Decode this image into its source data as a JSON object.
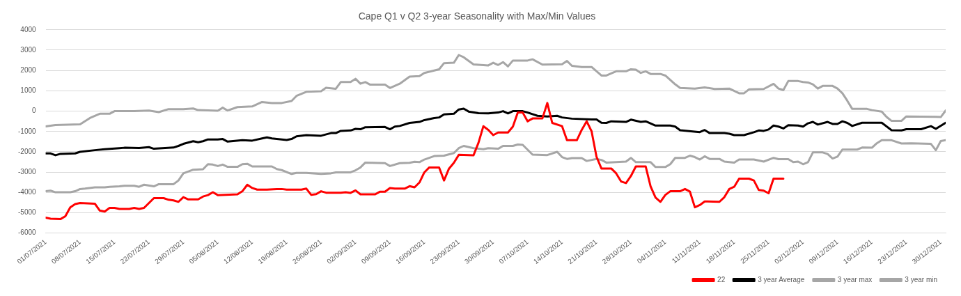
{
  "chart_data": {
    "type": "line",
    "title": "Cape Q1 v Q2 3-year Seasonality with Max/Min Values",
    "xlim": [
      "2021-07-01",
      "2021-12-31"
    ],
    "xticks": [
      {
        "value": "2021-07-01",
        "label": "01/07/2021"
      },
      {
        "value": "2021-07-08",
        "label": "08/07/2021"
      },
      {
        "value": "2021-07-15",
        "label": "15/07/2021"
      },
      {
        "value": "2021-07-22",
        "label": "22/07/2021"
      },
      {
        "value": "2021-07-29",
        "label": "29/07/2021"
      },
      {
        "value": "2021-08-05",
        "label": "05/08/2021"
      },
      {
        "value": "2021-08-12",
        "label": "12/08/2021"
      },
      {
        "value": "2021-08-19",
        "label": "19/08/2021"
      },
      {
        "value": "2021-08-26",
        "label": "26/08/2021"
      },
      {
        "value": "2021-09-02",
        "label": "02/09/2021"
      },
      {
        "value": "2021-09-09",
        "label": "09/09/2021"
      },
      {
        "value": "2021-09-16",
        "label": "16/09/2021"
      },
      {
        "value": "2021-09-23",
        "label": "23/09/2021"
      },
      {
        "value": "2021-09-30",
        "label": "30/09/2021"
      },
      {
        "value": "2021-10-07",
        "label": "07/10/2021"
      },
      {
        "value": "2021-10-14",
        "label": "14/10/2021"
      },
      {
        "value": "2021-10-21",
        "label": "21/10/2021"
      },
      {
        "value": "2021-10-28",
        "label": "28/10/2021"
      },
      {
        "value": "2021-11-04",
        "label": "04/11/2021"
      },
      {
        "value": "2021-11-11",
        "label": "11/11/2021"
      },
      {
        "value": "2021-11-18",
        "label": "18/11/2021"
      },
      {
        "value": "2021-11-25",
        "label": "25/11/2021"
      },
      {
        "value": "2021-12-02",
        "label": "02/12/2021"
      },
      {
        "value": "2021-12-09",
        "label": "09/12/2021"
      },
      {
        "value": "2021-12-16",
        "label": "16/12/2021"
      },
      {
        "value": "2021-12-23",
        "label": "23/12/2021"
      },
      {
        "value": "2021-12-30",
        "label": "30/12/2021"
      }
    ],
    "ylim": [
      -6000,
      4000
    ],
    "yticks": [
      -6000,
      -5000,
      -4000,
      -3000,
      -2000,
      -1000,
      0,
      1000,
      2000,
      3000,
      4000
    ],
    "grid": "y",
    "legend": "bottom",
    "marker": "none",
    "line_style": "solid",
    "series": [
      {
        "name": "22",
        "color": "#ff0000",
        "x": [
          "2021-07-01",
          "2021-07-02",
          "2021-07-04",
          "2021-07-05",
          "2021-07-06",
          "2021-07-07",
          "2021-07-08",
          "2021-07-11",
          "2021-07-12",
          "2021-07-13",
          "2021-07-14",
          "2021-07-15",
          "2021-07-16",
          "2021-07-18",
          "2021-07-19",
          "2021-07-20",
          "2021-07-21",
          "2021-07-23",
          "2021-07-25",
          "2021-07-26",
          "2021-07-27",
          "2021-07-28",
          "2021-07-29",
          "2021-07-30",
          "2021-08-01",
          "2021-08-02",
          "2021-08-03",
          "2021-08-04",
          "2021-08-05",
          "2021-08-09",
          "2021-08-10",
          "2021-08-11",
          "2021-08-12",
          "2021-08-13",
          "2021-08-15",
          "2021-08-17",
          "2021-08-18",
          "2021-08-19",
          "2021-08-22",
          "2021-08-23",
          "2021-08-24",
          "2021-08-25",
          "2021-08-26",
          "2021-08-27",
          "2021-08-30",
          "2021-08-31",
          "2021-09-01",
          "2021-09-02",
          "2021-09-03",
          "2021-09-06",
          "2021-09-07",
          "2021-09-08",
          "2021-09-09",
          "2021-09-10",
          "2021-09-12",
          "2021-09-13",
          "2021-09-14",
          "2021-09-15",
          "2021-09-16",
          "2021-09-17",
          "2021-09-19",
          "2021-09-20",
          "2021-09-21",
          "2021-09-22",
          "2021-09-23",
          "2021-09-26",
          "2021-09-27",
          "2021-09-28",
          "2021-09-29",
          "2021-09-30",
          "2021-10-01",
          "2021-10-03",
          "2021-10-04",
          "2021-10-05",
          "2021-10-06",
          "2021-10-07",
          "2021-10-08",
          "2021-10-10",
          "2021-10-11",
          "2021-10-12",
          "2021-10-14",
          "2021-10-15",
          "2021-10-17",
          "2021-10-18",
          "2021-10-19",
          "2021-10-20",
          "2021-10-21",
          "2021-10-22",
          "2021-10-24",
          "2021-10-25",
          "2021-10-26",
          "2021-10-27",
          "2021-10-28",
          "2021-10-29",
          "2021-10-31",
          "2021-11-01",
          "2021-11-02",
          "2021-11-03",
          "2021-11-04",
          "2021-11-05",
          "2021-11-07",
          "2021-11-08",
          "2021-11-09",
          "2021-11-10",
          "2021-11-11",
          "2021-11-12",
          "2021-11-15",
          "2021-11-16",
          "2021-11-17",
          "2021-11-18",
          "2021-11-19",
          "2021-11-21",
          "2021-11-22",
          "2021-11-23",
          "2021-11-24",
          "2021-11-25",
          "2021-11-26",
          "2021-11-28"
        ],
        "values": [
          -5240,
          -5290,
          -5310,
          -5170,
          -4730,
          -4570,
          -4520,
          -4550,
          -4890,
          -4940,
          -4760,
          -4760,
          -4810,
          -4810,
          -4760,
          -4810,
          -4760,
          -4280,
          -4280,
          -4360,
          -4390,
          -4460,
          -4230,
          -4340,
          -4340,
          -4200,
          -4130,
          -3990,
          -4130,
          -4090,
          -3940,
          -3620,
          -3780,
          -3860,
          -3860,
          -3830,
          -3830,
          -3860,
          -3860,
          -3810,
          -4120,
          -4080,
          -3940,
          -4010,
          -4010,
          -3990,
          -4020,
          -3900,
          -4090,
          -4090,
          -3960,
          -3960,
          -3780,
          -3810,
          -3810,
          -3690,
          -3750,
          -3510,
          -3010,
          -2770,
          -2770,
          -3410,
          -2830,
          -2540,
          -2150,
          -2170,
          -1560,
          -740,
          -920,
          -1180,
          -1050,
          -1050,
          -760,
          -70,
          -70,
          -500,
          -360,
          -360,
          400,
          -580,
          -740,
          -1430,
          -1430,
          -920,
          -500,
          -990,
          -2240,
          -2820,
          -2820,
          -3060,
          -3460,
          -3540,
          -3190,
          -2720,
          -2720,
          -3700,
          -4250,
          -4460,
          -4120,
          -3940,
          -3940,
          -3830,
          -3960,
          -4730,
          -4620,
          -4440,
          -4460,
          -4230,
          -3830,
          -3720,
          -3320,
          -3320,
          -3410,
          -3880,
          -3910,
          -4040,
          -3320,
          -3320
        ]
      },
      {
        "name": "3 year Average",
        "color": "#000000",
        "x": [
          "2021-07-01",
          "2021-07-02",
          "2021-07-03",
          "2021-07-04",
          "2021-07-07",
          "2021-07-08",
          "2021-07-11",
          "2021-07-13",
          "2021-07-16",
          "2021-07-17",
          "2021-07-20",
          "2021-07-22",
          "2021-07-23",
          "2021-07-27",
          "2021-07-28",
          "2021-07-29",
          "2021-07-31",
          "2021-08-01",
          "2021-08-02",
          "2021-08-03",
          "2021-08-05",
          "2021-08-06",
          "2021-08-07",
          "2021-08-10",
          "2021-08-12",
          "2021-08-14",
          "2021-08-15",
          "2021-08-16",
          "2021-08-19",
          "2021-08-20",
          "2021-08-21",
          "2021-08-23",
          "2021-08-26",
          "2021-08-28",
          "2021-08-29",
          "2021-08-30",
          "2021-09-01",
          "2021-09-02",
          "2021-09-03",
          "2021-09-04",
          "2021-09-08",
          "2021-09-09",
          "2021-09-10",
          "2021-09-11",
          "2021-09-13",
          "2021-09-15",
          "2021-09-16",
          "2021-09-18",
          "2021-09-19",
          "2021-09-20",
          "2021-09-22",
          "2021-09-23",
          "2021-09-24",
          "2021-09-25",
          "2021-09-27",
          "2021-09-29",
          "2021-10-01",
          "2021-10-02",
          "2021-10-03",
          "2021-10-04",
          "2021-10-06",
          "2021-10-07",
          "2021-10-09",
          "2021-10-11",
          "2021-10-13",
          "2021-10-14",
          "2021-10-16",
          "2021-10-20",
          "2021-10-21",
          "2021-10-22",
          "2021-10-23",
          "2021-10-24",
          "2021-10-27",
          "2021-10-28",
          "2021-10-30",
          "2021-10-31",
          "2021-11-02",
          "2021-11-05",
          "2021-11-06",
          "2021-11-07",
          "2021-11-11",
          "2021-11-12",
          "2021-11-13",
          "2021-11-16",
          "2021-11-17",
          "2021-11-18",
          "2021-11-20",
          "2021-11-22",
          "2021-11-23",
          "2021-11-24",
          "2021-11-25",
          "2021-11-26",
          "2021-11-27",
          "2021-11-28",
          "2021-11-29",
          "2021-12-01",
          "2021-12-02",
          "2021-12-03",
          "2021-12-04",
          "2021-12-05",
          "2021-12-07",
          "2021-12-08",
          "2021-12-09",
          "2021-12-10",
          "2021-12-11",
          "2021-12-12",
          "2021-12-14",
          "2021-12-18",
          "2021-12-20",
          "2021-12-22",
          "2021-12-23",
          "2021-12-26",
          "2021-12-28",
          "2021-12-29",
          "2021-12-31"
        ],
        "values": [
          -2080,
          -2080,
          -2170,
          -2100,
          -2080,
          -2000,
          -1920,
          -1870,
          -1820,
          -1800,
          -1810,
          -1770,
          -1850,
          -1790,
          -1710,
          -1610,
          -1480,
          -1530,
          -1480,
          -1390,
          -1390,
          -1370,
          -1500,
          -1430,
          -1450,
          -1340,
          -1290,
          -1340,
          -1420,
          -1370,
          -1240,
          -1180,
          -1210,
          -1080,
          -1080,
          -970,
          -950,
          -870,
          -890,
          -790,
          -780,
          -890,
          -760,
          -730,
          -580,
          -530,
          -440,
          -340,
          -310,
          -160,
          -130,
          80,
          120,
          -20,
          -100,
          -110,
          -70,
          0,
          -110,
          0,
          0,
          -70,
          -230,
          -260,
          -230,
          -310,
          -370,
          -410,
          -410,
          -570,
          -580,
          -500,
          -530,
          -420,
          -530,
          -500,
          -710,
          -710,
          -760,
          -940,
          -1030,
          -930,
          -1080,
          -1080,
          -1110,
          -1180,
          -1180,
          -1040,
          -950,
          -970,
          -900,
          -710,
          -760,
          -850,
          -690,
          -710,
          -760,
          -600,
          -530,
          -660,
          -530,
          -630,
          -630,
          -500,
          -580,
          -730,
          -570,
          -570,
          -940,
          -950,
          -890,
          -890,
          -740,
          -870,
          -570
        ]
      },
      {
        "name": "3 year max",
        "color": "#a6a6a6",
        "x": [
          "2021-07-01",
          "2021-07-03",
          "2021-07-08",
          "2021-07-10",
          "2021-07-12",
          "2021-07-14",
          "2021-07-15",
          "2021-07-19",
          "2021-07-22",
          "2021-07-24",
          "2021-07-26",
          "2021-07-29",
          "2021-07-31",
          "2021-08-01",
          "2021-08-05",
          "2021-08-06",
          "2021-08-07",
          "2021-08-09",
          "2021-08-12",
          "2021-08-14",
          "2021-08-16",
          "2021-08-18",
          "2021-08-20",
          "2021-08-21",
          "2021-08-23",
          "2021-08-26",
          "2021-08-27",
          "2021-08-29",
          "2021-08-30",
          "2021-09-01",
          "2021-09-02",
          "2021-09-03",
          "2021-09-04",
          "2021-09-05",
          "2021-09-08",
          "2021-09-09",
          "2021-09-11",
          "2021-09-13",
          "2021-09-15",
          "2021-09-16",
          "2021-09-19",
          "2021-09-20",
          "2021-09-22",
          "2021-09-23",
          "2021-09-24",
          "2021-09-26",
          "2021-09-29",
          "2021-09-30",
          "2021-10-01",
          "2021-10-02",
          "2021-10-03",
          "2021-10-04",
          "2021-10-07",
          "2021-10-08",
          "2021-10-10",
          "2021-10-14",
          "2021-10-15",
          "2021-10-16",
          "2021-10-18",
          "2021-10-20",
          "2021-10-22",
          "2021-10-23",
          "2021-10-25",
          "2021-10-27",
          "2021-10-28",
          "2021-10-29",
          "2021-10-30",
          "2021-10-31",
          "2021-11-01",
          "2021-11-03",
          "2021-11-04",
          "2021-11-06",
          "2021-11-07",
          "2021-11-10",
          "2021-11-12",
          "2021-11-14",
          "2021-11-17",
          "2021-11-19",
          "2021-11-20",
          "2021-11-21",
          "2021-11-24",
          "2021-11-26",
          "2021-11-27",
          "2021-11-28",
          "2021-11-29",
          "2021-12-01",
          "2021-12-02",
          "2021-12-03",
          "2021-12-04",
          "2021-12-05",
          "2021-12-06",
          "2021-12-08",
          "2021-12-09",
          "2021-12-10",
          "2021-12-11",
          "2021-12-12",
          "2021-12-15",
          "2021-12-16",
          "2021-12-18",
          "2021-12-19",
          "2021-12-20",
          "2021-12-22",
          "2021-12-23",
          "2021-12-29",
          "2021-12-30",
          "2021-12-31"
        ],
        "values": [
          -750,
          -680,
          -650,
          -340,
          -130,
          -130,
          0,
          0,
          30,
          -50,
          100,
          100,
          130,
          50,
          20,
          170,
          30,
          200,
          230,
          450,
          400,
          400,
          500,
          750,
          950,
          980,
          1150,
          1100,
          1430,
          1430,
          1590,
          1350,
          1430,
          1300,
          1300,
          1140,
          1350,
          1700,
          1720,
          1880,
          2060,
          2360,
          2380,
          2760,
          2650,
          2300,
          2250,
          2380,
          2270,
          2410,
          2200,
          2490,
          2490,
          2550,
          2290,
          2310,
          2470,
          2230,
          2170,
          2170,
          1750,
          1750,
          1960,
          1960,
          2060,
          2040,
          1880,
          1960,
          1830,
          1830,
          1750,
          1320,
          1140,
          1110,
          1170,
          1090,
          1110,
          880,
          880,
          1070,
          1090,
          1340,
          1110,
          1040,
          1480,
          1480,
          1430,
          1410,
          1320,
          1110,
          1240,
          1240,
          1110,
          880,
          510,
          110,
          110,
          50,
          -20,
          -290,
          -480,
          -480,
          -260,
          -280,
          -290,
          30
        ]
      },
      {
        "name": "3 year min",
        "color": "#a6a6a6",
        "x": [
          "2021-07-01",
          "2021-07-02",
          "2021-07-03",
          "2021-07-06",
          "2021-07-07",
          "2021-07-08",
          "2021-07-09",
          "2021-07-11",
          "2021-07-13",
          "2021-07-14",
          "2021-07-16",
          "2021-07-17",
          "2021-07-19",
          "2021-07-20",
          "2021-07-21",
          "2021-07-23",
          "2021-07-24",
          "2021-07-27",
          "2021-07-28",
          "2021-07-29",
          "2021-07-31",
          "2021-08-02",
          "2021-08-03",
          "2021-08-04",
          "2021-08-05",
          "2021-08-06",
          "2021-08-07",
          "2021-08-09",
          "2021-08-10",
          "2021-08-11",
          "2021-08-12",
          "2021-08-16",
          "2021-08-17",
          "2021-08-18",
          "2021-08-20",
          "2021-08-21",
          "2021-08-23",
          "2021-08-26",
          "2021-08-28",
          "2021-08-29",
          "2021-09-01",
          "2021-09-02",
          "2021-09-03",
          "2021-09-04",
          "2021-09-08",
          "2021-09-09",
          "2021-09-11",
          "2021-09-13",
          "2021-09-14",
          "2021-09-15",
          "2021-09-16",
          "2021-09-18",
          "2021-09-20",
          "2021-09-22",
          "2021-09-23",
          "2021-09-24",
          "2021-09-26",
          "2021-09-28",
          "2021-09-29",
          "2021-10-01",
          "2021-10-02",
          "2021-10-04",
          "2021-10-05",
          "2021-10-06",
          "2021-10-08",
          "2021-10-11",
          "2021-10-13",
          "2021-10-14",
          "2021-10-15",
          "2021-10-16",
          "2021-10-18",
          "2021-10-19",
          "2021-10-21",
          "2021-10-22",
          "2021-10-23",
          "2021-10-27",
          "2021-10-28",
          "2021-10-29",
          "2021-11-01",
          "2021-11-02",
          "2021-11-04",
          "2021-11-05",
          "2021-11-06",
          "2021-11-08",
          "2021-11-09",
          "2021-11-10",
          "2021-11-11",
          "2021-11-12",
          "2021-11-13",
          "2021-11-15",
          "2021-11-16",
          "2021-11-18",
          "2021-11-19",
          "2021-11-22",
          "2021-11-24",
          "2021-11-26",
          "2021-11-27",
          "2021-11-29",
          "2021-11-30",
          "2021-12-01",
          "2021-12-02",
          "2021-12-03",
          "2021-12-04",
          "2021-12-06",
          "2021-12-07",
          "2021-12-08",
          "2021-12-09",
          "2021-12-10",
          "2021-12-13",
          "2021-12-14",
          "2021-12-16",
          "2021-12-17",
          "2021-12-18",
          "2021-12-20",
          "2021-12-22",
          "2021-12-24",
          "2021-12-28",
          "2021-12-29",
          "2021-12-30",
          "2021-12-31"
        ],
        "values": [
          -3940,
          -3910,
          -3990,
          -3990,
          -3940,
          -3830,
          -3810,
          -3750,
          -3750,
          -3720,
          -3700,
          -3670,
          -3670,
          -3720,
          -3620,
          -3700,
          -3590,
          -3590,
          -3410,
          -3060,
          -2880,
          -2860,
          -2610,
          -2630,
          -2700,
          -2630,
          -2740,
          -2740,
          -2610,
          -2590,
          -2720,
          -2720,
          -2850,
          -2900,
          -3090,
          -3040,
          -3040,
          -3090,
          -3060,
          -3010,
          -3010,
          -2910,
          -2770,
          -2530,
          -2560,
          -2700,
          -2560,
          -2540,
          -2490,
          -2510,
          -2380,
          -2210,
          -2190,
          -2060,
          -1820,
          -1710,
          -1820,
          -1870,
          -1820,
          -1850,
          -1710,
          -1710,
          -1640,
          -1660,
          -2140,
          -2160,
          -2000,
          -2260,
          -2350,
          -2310,
          -2310,
          -2450,
          -2350,
          -2400,
          -2530,
          -2480,
          -2300,
          -2510,
          -2510,
          -2750,
          -2750,
          -2610,
          -2300,
          -2300,
          -2190,
          -2260,
          -2380,
          -2220,
          -2350,
          -2350,
          -2480,
          -2530,
          -2380,
          -2380,
          -2480,
          -2300,
          -2360,
          -2360,
          -2510,
          -2480,
          -2610,
          -2510,
          -2030,
          -2030,
          -2110,
          -2330,
          -2240,
          -1890,
          -1890,
          -1790,
          -1800,
          -1580,
          -1430,
          -1430,
          -1590,
          -1580,
          -1610,
          -1920,
          -1470,
          -1430
        ]
      }
    ]
  }
}
